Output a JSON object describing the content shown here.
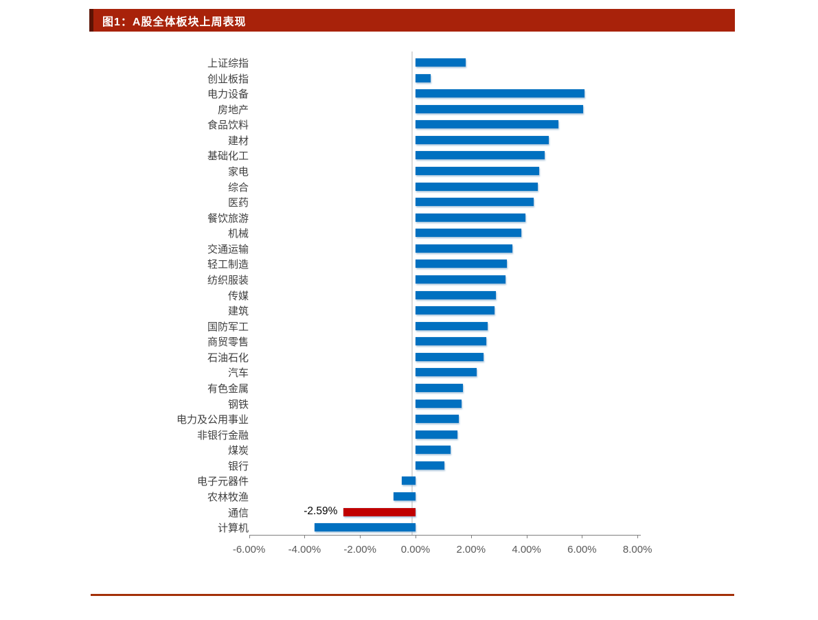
{
  "figure": {
    "title": "图1：A股全体板块上周表现",
    "title_bar_color": "#A8220A",
    "title_strip_color": "#5C1404",
    "divider_color": "#A33008"
  },
  "chart_data": {
    "type": "bar",
    "orientation": "horizontal",
    "title": "A股全体板块上周表现",
    "value_unit": "%",
    "categories": [
      "上证综指",
      "创业板指",
      "电力设备",
      "房地产",
      "食品饮料",
      "建材",
      "基础化工",
      "家电",
      "综合",
      "医药",
      "餐饮旅游",
      "机械",
      "交通运输",
      "轻工制造",
      "纺织服装",
      "传媒",
      "建筑",
      "国防军工",
      "商贸零售",
      "石油石化",
      "汽车",
      "有色金属",
      "钢铁",
      "电力及公用事业",
      "非银行金融",
      "煤炭",
      "银行",
      "电子元器件",
      "农林牧渔",
      "通信",
      "计算机"
    ],
    "values": [
      1.8,
      0.55,
      6.1,
      6.05,
      5.15,
      4.8,
      4.65,
      4.45,
      4.4,
      4.25,
      3.95,
      3.8,
      3.5,
      3.3,
      3.25,
      2.9,
      2.85,
      2.6,
      2.55,
      2.45,
      2.2,
      1.7,
      1.65,
      1.55,
      1.5,
      1.25,
      1.05,
      -0.5,
      -0.8,
      -2.59,
      -3.65
    ],
    "bar_color": "#0070C0",
    "highlight": {
      "category": "通信",
      "color": "#C00000",
      "data_label": "-2.59%"
    },
    "x_ticks": {
      "values": [
        -6,
        -4,
        -2,
        0,
        2,
        4,
        6,
        8
      ],
      "labels": [
        "-6.00%",
        "-4.00%",
        "-2.00%",
        "0.00%",
        "2.00%",
        "4.00%",
        "6.00%",
        "8.00%"
      ]
    },
    "xlim": [
      -6,
      8
    ],
    "grid": "none",
    "legend": "none",
    "axis_color": "#7F7F7F",
    "tick_label_color": "#595959",
    "zero_line_color": "#D9D9D9"
  }
}
